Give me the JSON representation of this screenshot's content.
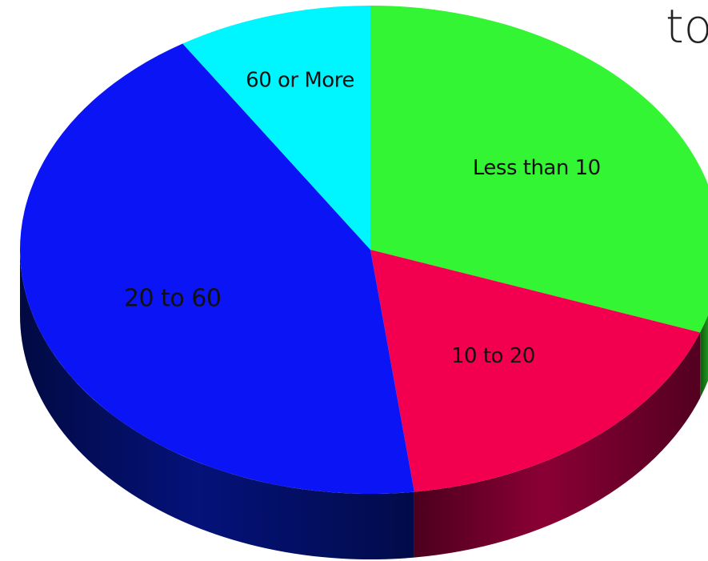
{
  "corner_text": "to",
  "chart_data": {
    "type": "pie",
    "title": "",
    "slices": [
      {
        "label": "Less than 10",
        "value": 30.5,
        "color": "#33f533",
        "side_color": "#1f9f1f"
      },
      {
        "label": "10 to 20",
        "value": 17.5,
        "color": "#f2004f",
        "side_color": "#8a0035"
      },
      {
        "label": "20 to 60",
        "value": 43.0,
        "color": "#0a14f5",
        "side_color": "#04127a"
      },
      {
        "label": "60 or More",
        "value": 9.0,
        "color": "#00f6ff",
        "side_color": "#00a4b0"
      }
    ],
    "start": "12 o'clock",
    "direction": "clockwise",
    "style": "3d"
  }
}
